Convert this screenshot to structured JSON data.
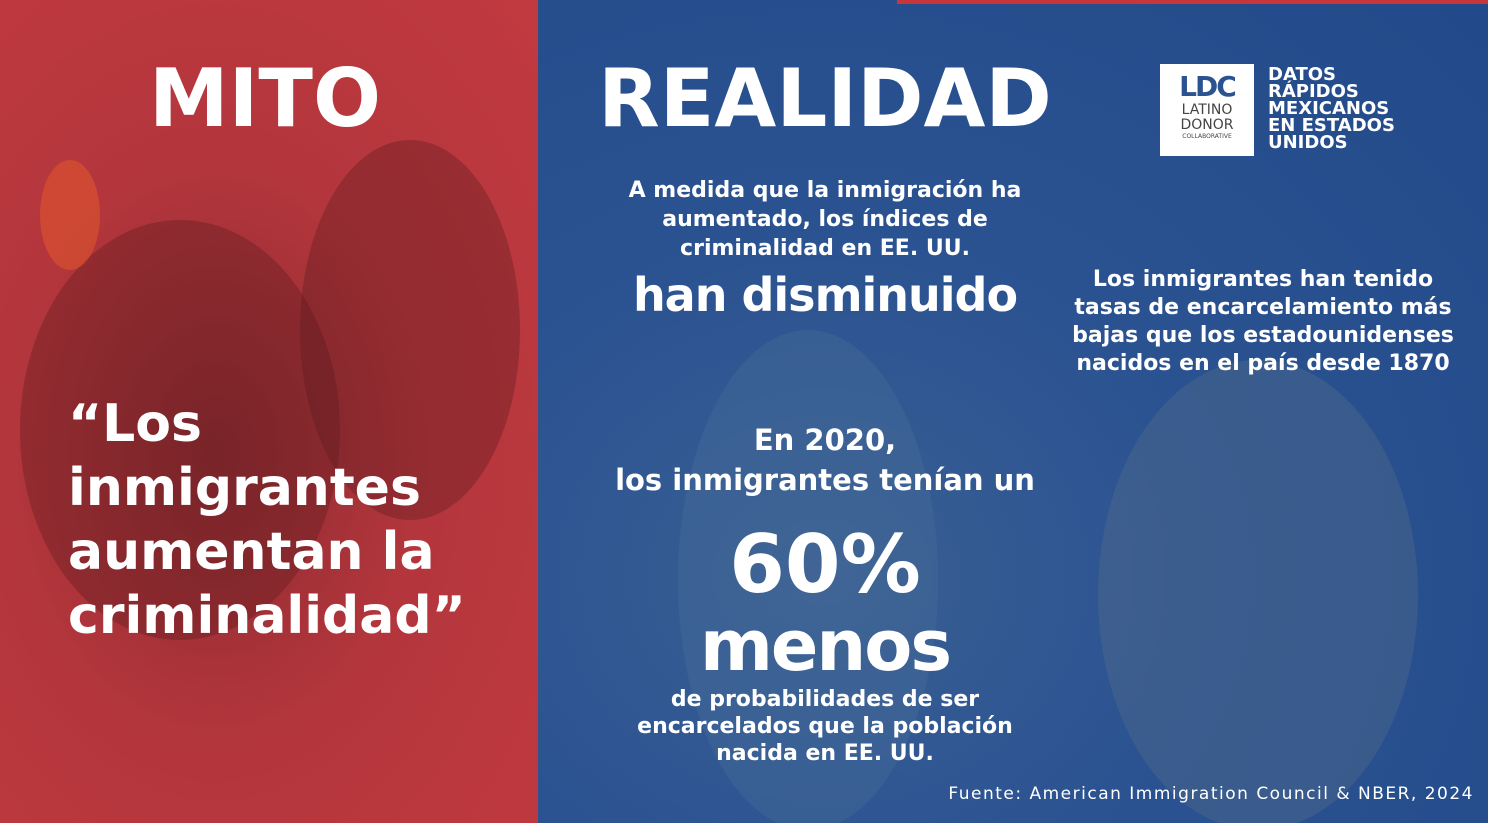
{
  "left": {
    "title": "MITO",
    "quote": [
      "“Los",
      "inmigrantes",
      "aumentan la",
      "criminalidad”"
    ]
  },
  "right": {
    "title": "REALIDAD",
    "logo": {
      "mark": "LDC",
      "lines": [
        "LATINO",
        "DONOR",
        "COLLABORATIVE"
      ]
    },
    "tagline": [
      "DATOS",
      "RÁPIDOS",
      "MEXICANOS",
      "EN ESTADOS",
      "UNIDOS"
    ],
    "fact1": {
      "lines": [
        "A medida que la inmigración ha",
        "aumentado, los índices de",
        "criminalidad en EE. UU."
      ],
      "emphasis": "han disminuido"
    },
    "fact2": {
      "lines": [
        "Los inmigrantes han tenido",
        "tasas de encarcelamiento más",
        "bajas que los estadounidenses",
        "nacidos en el país desde 1870"
      ]
    },
    "fact3": {
      "intro": [
        "En 2020,",
        "los inmigrantes tenían un"
      ],
      "figure": "60%",
      "emphasis": "menos",
      "lines": [
        "de probabilidades de ser",
        "encarcelados que la población",
        "nacida en EE. UU."
      ]
    },
    "source": "Fuente: American Immigration Council & NBER, 2024"
  }
}
